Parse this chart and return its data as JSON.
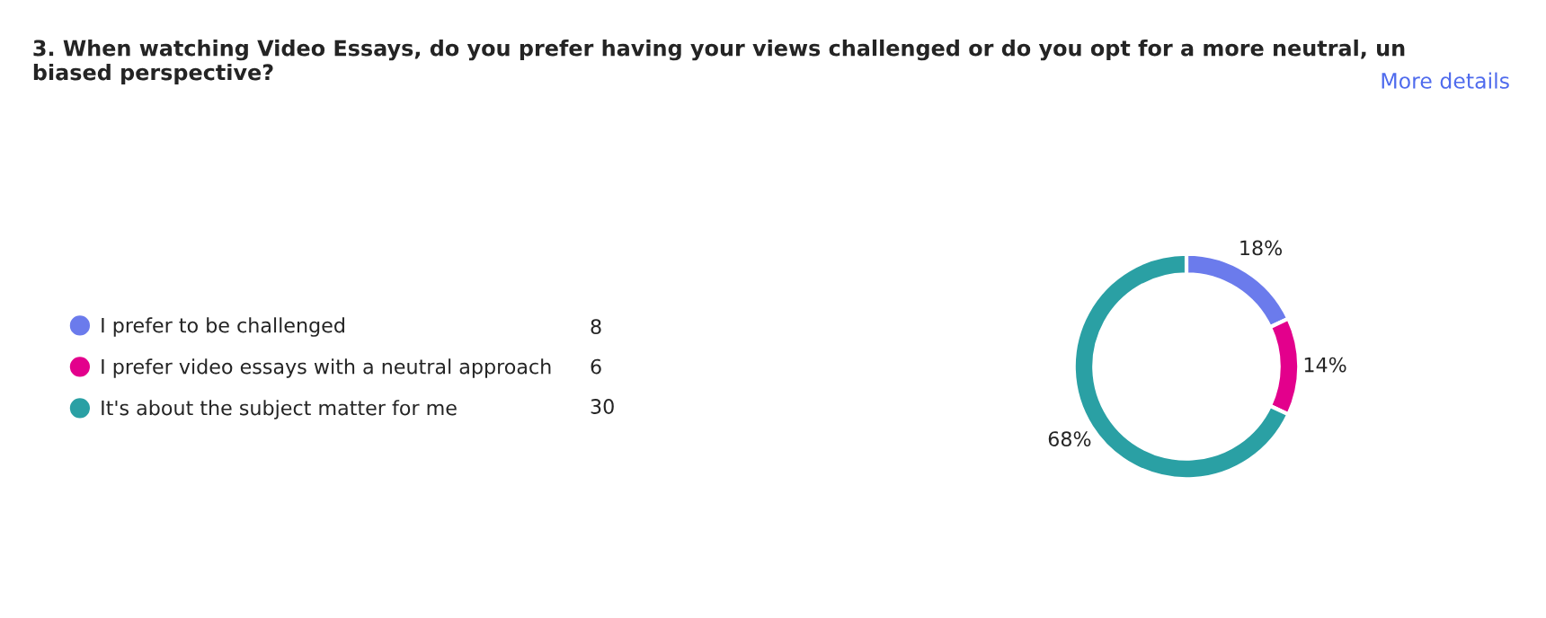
{
  "chart_data": {
    "type": "donut",
    "title": "3. When watching Video Essays, do you prefer having your views challenged or do you opt for a more neutral, un biased perspective?",
    "annotations": [
      "More details",
      "8",
      "6",
      "30"
    ],
    "categories": [
      "I prefer to be challenged",
      "I prefer video essays with a neutral approach",
      "It's about the subject matter for me"
    ],
    "values": [
      18,
      14,
      68
    ],
    "value_labels": [
      "18%",
      "14%",
      "68%"
    ],
    "colors": [
      "#6b7bec",
      "#e3008c",
      "#2aa0a4"
    ],
    "legend": "left"
  }
}
